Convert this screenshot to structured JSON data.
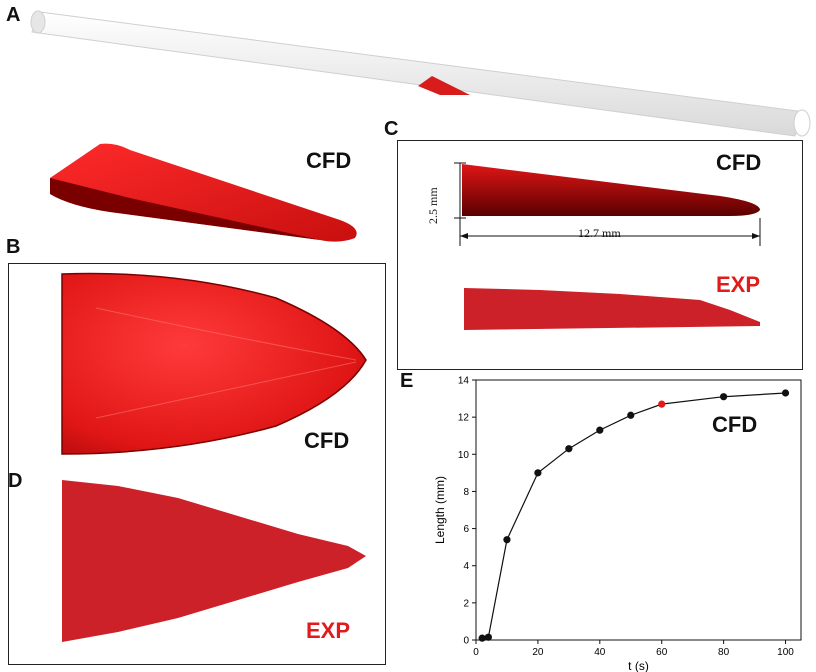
{
  "panels": {
    "A": {
      "letter": "A"
    },
    "B": {
      "letter": "B",
      "tag": "CFD"
    },
    "C": {
      "letter": "C",
      "tag_cfd": "CFD",
      "tag_exp": "EXP",
      "height_label": "2.5 mm",
      "length_label": "12.7 mm"
    },
    "D": {
      "letter": "D",
      "tag": "EXP"
    },
    "E": {
      "letter": "E",
      "tag": "CFD"
    },
    "cfd_3d_tag": "CFD"
  },
  "colors": {
    "clot_red": "#d81b1b",
    "clot_dark": "#6b0000",
    "exp_red": "#cc2128",
    "vessel": "#efefef",
    "highlight_point": "#e41a1c"
  },
  "chart_data": {
    "type": "line",
    "xlabel": "t (s)",
    "ylabel": "Length (mm)",
    "xlim": [
      0,
      105
    ],
    "ylim": [
      0,
      14
    ],
    "xticks": [
      0,
      20,
      40,
      60,
      80,
      100
    ],
    "yticks": [
      0,
      2,
      4,
      6,
      8,
      10,
      12,
      14
    ],
    "series": [
      {
        "x": [
          2,
          4,
          10,
          20,
          30,
          40,
          50,
          60,
          80,
          100
        ],
        "y": [
          0.1,
          0.15,
          5.4,
          9.0,
          10.3,
          11.3,
          12.1,
          12.7,
          13.1,
          13.3
        ],
        "highlight_index": 7
      }
    ],
    "grid": false,
    "annotation": "CFD"
  }
}
